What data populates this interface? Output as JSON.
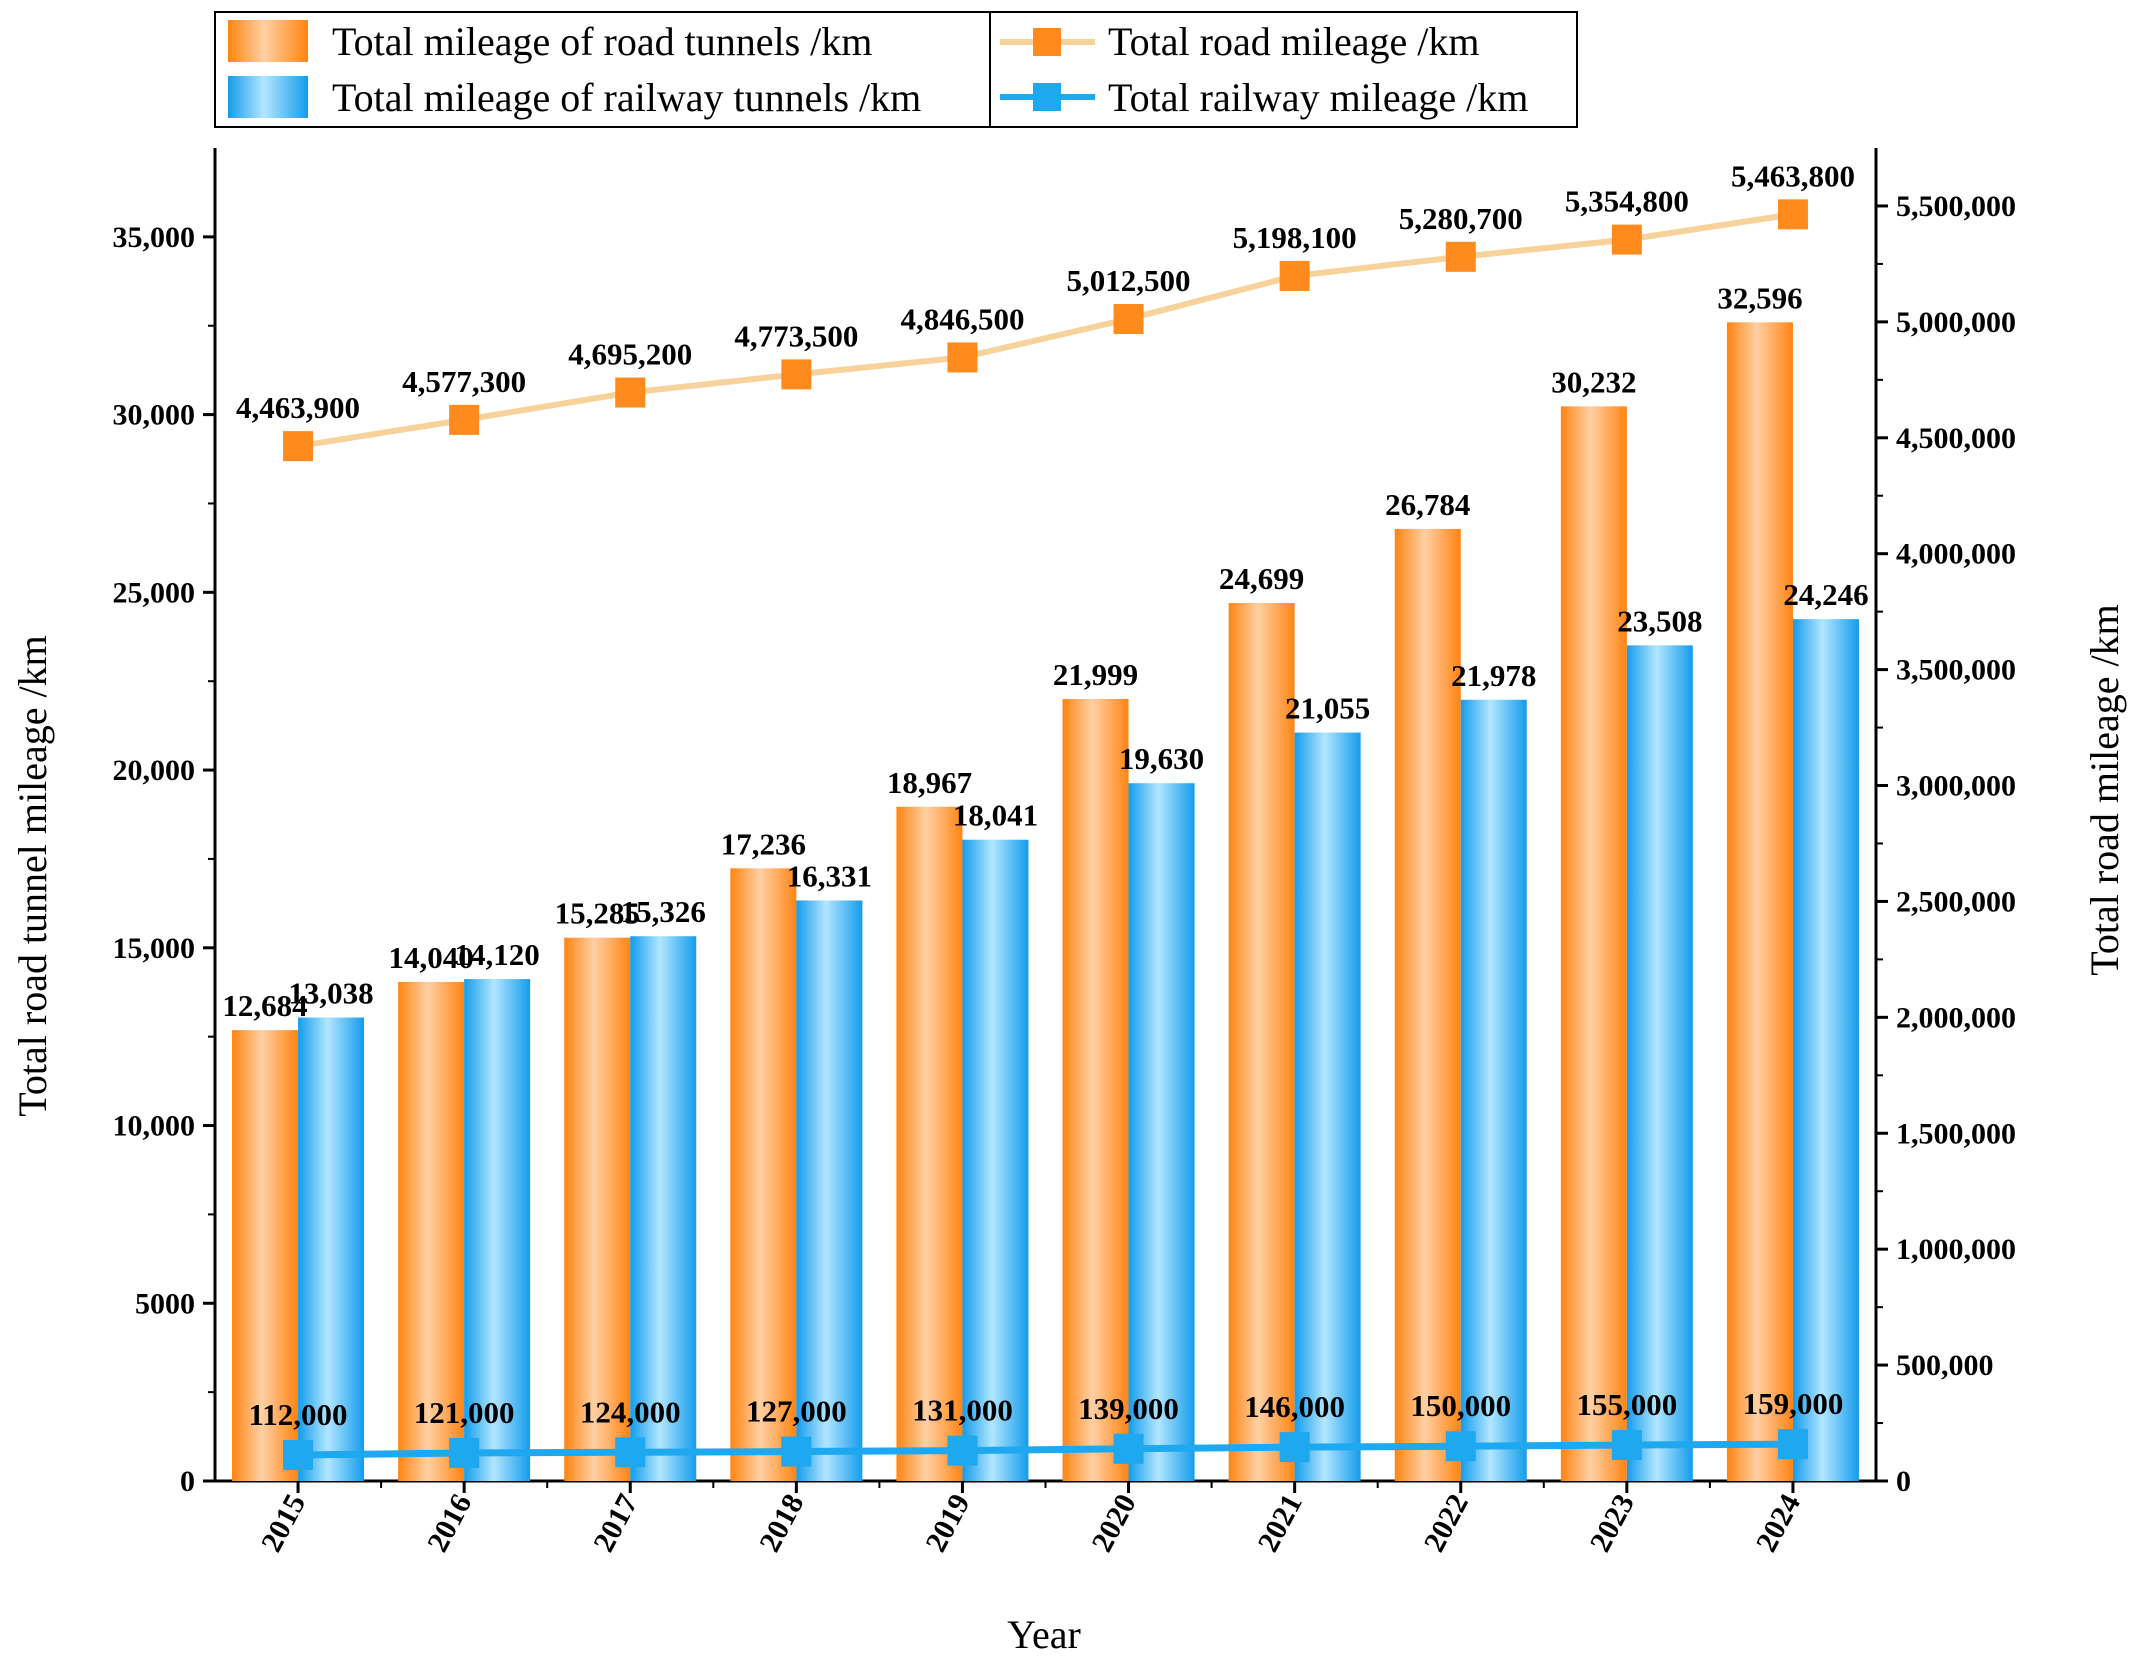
{
  "chart_data": {
    "type": "bar",
    "title": "",
    "categories": [
      "2015",
      "2016",
      "2017",
      "2018",
      "2019",
      "2020",
      "2021",
      "2022",
      "2023",
      "2024"
    ],
    "xlabel": "Year",
    "ylabel": "Total road tunnel mileage /km",
    "ylabel_right": "Total road mileage /km",
    "ylim": [
      0,
      37500
    ],
    "ylim_right": [
      0,
      5750000
    ],
    "yticks": [
      0,
      5000,
      10000,
      15000,
      20000,
      25000,
      30000,
      35000
    ],
    "yticks_labels": [
      "0",
      "5000",
      "10,000",
      "15,000",
      "20,000",
      "25,000",
      "30,000",
      "35,000"
    ],
    "yticks_right": [
      0,
      500000,
      1000000,
      1500000,
      2000000,
      2500000,
      3000000,
      3500000,
      4000000,
      4500000,
      5000000,
      5500000
    ],
    "yticks_right_labels": [
      "0",
      "500,000",
      "1,000,000",
      "1,500,000",
      "2,000,000",
      "2,500,000",
      "3,000,000",
      "3,500,000",
      "4,000,000",
      "4,500,000",
      "5,000,000",
      "5,500,000"
    ],
    "legend_position": "top",
    "series": [
      {
        "name": "Total mileage of road tunnels /km",
        "kind": "bar",
        "axis": "left",
        "color": "#ff8a1e",
        "values": [
          12684,
          14040,
          15285,
          17236,
          18967,
          21999,
          24699,
          26784,
          30232,
          32596
        ],
        "labels": [
          "12,684",
          "14,040",
          "15,285",
          "17,236",
          "18,967",
          "21,999",
          "24,699",
          "26,784",
          "30,232",
          "32,596"
        ]
      },
      {
        "name": "Total mileage of railway tunnels /km",
        "kind": "bar",
        "axis": "left",
        "color": "#1ea8f0",
        "values": [
          13038,
          14120,
          15326,
          16331,
          18041,
          19630,
          21055,
          21978,
          23508,
          24246
        ],
        "labels": [
          "13,038",
          "14,120",
          "15,326",
          "16,331",
          "18,041",
          "19,630",
          "21,055",
          "21,978",
          "23,508",
          "24,246"
        ]
      },
      {
        "name": "Total road mileage /km",
        "kind": "line",
        "axis": "right",
        "color": "#ff8a1e",
        "line_color": "#f7d29a",
        "values": [
          4463900,
          4577300,
          4695200,
          4773500,
          4846500,
          5012500,
          5198100,
          5280700,
          5354800,
          5463800
        ],
        "labels": [
          "4,463,900",
          "4,577,300",
          "4,695,200",
          "4,773,500",
          "4,846,500",
          "5,012,500",
          "5,198,100",
          "5,280,700",
          "5,354,800",
          "5,463,800"
        ]
      },
      {
        "name": "Total railway mileage /km",
        "kind": "line",
        "axis": "right",
        "color": "#1ea8f0",
        "line_color": "#1ea8f0",
        "values": [
          112000,
          121000,
          124000,
          127000,
          131000,
          139000,
          146000,
          150000,
          155000,
          159000
        ],
        "labels": [
          "112,000",
          "121,000",
          "124,000",
          "127,000",
          "131,000",
          "139,000",
          "146,000",
          "150,000",
          "155,000",
          "159,000"
        ]
      }
    ]
  }
}
